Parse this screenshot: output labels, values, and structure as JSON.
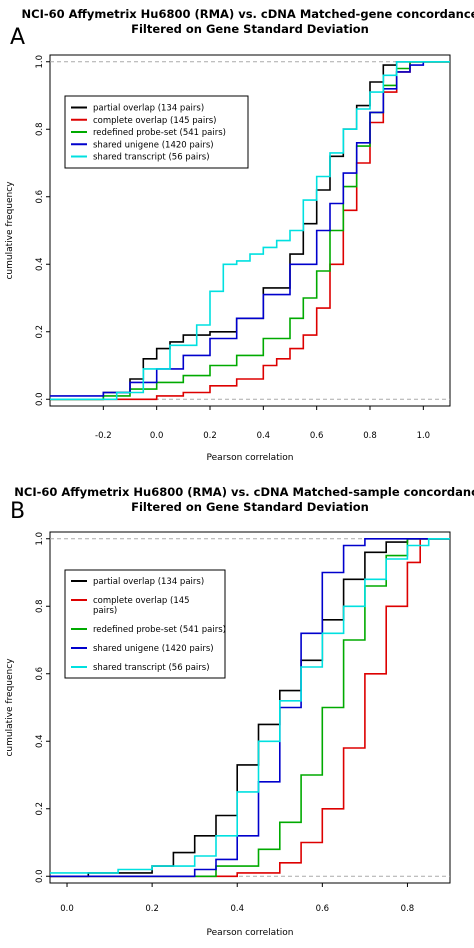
{
  "chart_data": [
    {
      "panel_label": "A",
      "type": "line",
      "title_lines": [
        "NCI-60 Affymetrix Hu6800 (RMA) vs. cDNA Matched-gene concordance",
        "Filtered on Gene Standard Deviation"
      ],
      "xlabel": "Pearson correlation",
      "ylabel": "cumulative frequency",
      "xlim": [
        -0.4,
        1.1
      ],
      "ylim": [
        -0.02,
        1.02
      ],
      "xticks": [
        -0.2,
        0.0,
        0.2,
        0.4,
        0.6,
        0.8,
        1.0
      ],
      "xtick_labels": [
        "-0.2",
        "0.0",
        "0.2",
        "0.4",
        "0.6",
        "0.8",
        "1.0"
      ],
      "yticks": [
        0.0,
        0.2,
        0.4,
        0.6,
        0.8,
        1.0
      ],
      "ytick_labels": [
        "0.0",
        "0.2",
        "0.4",
        "0.6",
        "0.8",
        "1.0"
      ],
      "reference_lines": [
        0,
        1
      ],
      "grid": false,
      "legend_position": "top-left",
      "series": [
        {
          "name": "partial overlap (134 pairs)",
          "color": "#000000",
          "x": [
            -0.4,
            -0.2,
            -0.1,
            -0.05,
            0.0,
            0.05,
            0.1,
            0.2,
            0.3,
            0.4,
            0.5,
            0.55,
            0.6,
            0.65,
            0.7,
            0.75,
            0.8,
            0.85,
            0.9,
            1.1
          ],
          "y": [
            0.0,
            0.02,
            0.06,
            0.12,
            0.15,
            0.17,
            0.19,
            0.2,
            0.24,
            0.33,
            0.43,
            0.52,
            0.62,
            0.72,
            0.8,
            0.87,
            0.94,
            0.99,
            1.0,
            1.0
          ]
        },
        {
          "name": "complete overlap (145 pairs)",
          "color": "#dd0000",
          "x": [
            -0.4,
            -0.1,
            0.0,
            0.1,
            0.2,
            0.3,
            0.4,
            0.45,
            0.5,
            0.55,
            0.6,
            0.65,
            0.7,
            0.75,
            0.8,
            0.85,
            0.9,
            0.95,
            1.1
          ],
          "y": [
            0.0,
            0.0,
            0.01,
            0.02,
            0.04,
            0.06,
            0.1,
            0.12,
            0.15,
            0.19,
            0.27,
            0.4,
            0.56,
            0.7,
            0.82,
            0.91,
            0.97,
            1.0,
            1.0
          ]
        },
        {
          "name": "redefined probe-set (541 pairs)",
          "color": "#00aa00",
          "x": [
            -0.4,
            -0.2,
            -0.1,
            0.0,
            0.1,
            0.2,
            0.3,
            0.4,
            0.5,
            0.55,
            0.6,
            0.65,
            0.7,
            0.75,
            0.8,
            0.85,
            0.9,
            0.95,
            1.1
          ],
          "y": [
            0.0,
            0.01,
            0.03,
            0.05,
            0.07,
            0.1,
            0.13,
            0.18,
            0.24,
            0.3,
            0.38,
            0.5,
            0.63,
            0.75,
            0.85,
            0.93,
            0.98,
            1.0,
            1.0
          ]
        },
        {
          "name": "shared unigene (1420 pairs)",
          "color": "#0000cc",
          "x": [
            -0.4,
            -0.2,
            -0.1,
            0.0,
            0.1,
            0.2,
            0.3,
            0.4,
            0.5,
            0.6,
            0.65,
            0.7,
            0.75,
            0.8,
            0.85,
            0.9,
            0.95,
            1.0
          ],
          "y": [
            0.01,
            0.02,
            0.05,
            0.09,
            0.13,
            0.18,
            0.24,
            0.31,
            0.4,
            0.5,
            0.58,
            0.67,
            0.76,
            0.85,
            0.92,
            0.97,
            0.99,
            1.0
          ]
        },
        {
          "name": "shared transcript (56 pairs)",
          "color": "#00e0e0",
          "x": [
            -0.4,
            -0.15,
            -0.05,
            0.05,
            0.15,
            0.2,
            0.25,
            0.3,
            0.35,
            0.4,
            0.45,
            0.5,
            0.55,
            0.6,
            0.65,
            0.7,
            0.75,
            0.8,
            0.85,
            0.9,
            1.1
          ],
          "y": [
            0.0,
            0.02,
            0.09,
            0.16,
            0.22,
            0.32,
            0.4,
            0.41,
            0.43,
            0.45,
            0.47,
            0.5,
            0.59,
            0.66,
            0.73,
            0.8,
            0.86,
            0.91,
            0.96,
            1.0,
            1.0
          ]
        }
      ]
    },
    {
      "panel_label": "B",
      "type": "line",
      "title_lines": [
        "NCI-60 Affymetrix Hu6800 (RMA) vs. cDNA Matched-sample concordance",
        "Filtered on Gene Standard Deviation"
      ],
      "xlabel": "Pearson correlation",
      "ylabel": "cumulative frequency",
      "xlim": [
        -0.04,
        0.9
      ],
      "ylim": [
        -0.02,
        1.02
      ],
      "xticks": [
        0.0,
        0.2,
        0.4,
        0.6,
        0.8
      ],
      "xtick_labels": [
        "0.0",
        "0.2",
        "0.4",
        "0.6",
        "0.8"
      ],
      "yticks": [
        0.0,
        0.2,
        0.4,
        0.6,
        0.8,
        1.0
      ],
      "ytick_labels": [
        "0.0",
        "0.2",
        "0.4",
        "0.6",
        "0.8",
        "1.0"
      ],
      "reference_lines": [
        0,
        1
      ],
      "grid": false,
      "legend_position": "top-left",
      "series": [
        {
          "name": "partial overlap (134 pairs)",
          "color": "#000000",
          "x": [
            -0.04,
            0.05,
            0.2,
            0.25,
            0.3,
            0.35,
            0.4,
            0.45,
            0.5,
            0.55,
            0.6,
            0.65,
            0.7,
            0.75,
            0.8,
            0.9
          ],
          "y": [
            0.0,
            0.01,
            0.03,
            0.07,
            0.12,
            0.18,
            0.33,
            0.45,
            0.55,
            0.64,
            0.76,
            0.88,
            0.96,
            0.99,
            1.0,
            1.0
          ]
        },
        {
          "name": "complete overlap (145\npairs)",
          "color": "#dd0000",
          "x": [
            -0.04,
            0.3,
            0.4,
            0.5,
            0.55,
            0.6,
            0.65,
            0.7,
            0.75,
            0.8,
            0.83,
            0.9
          ],
          "y": [
            0.0,
            0.0,
            0.01,
            0.04,
            0.1,
            0.2,
            0.38,
            0.6,
            0.8,
            0.93,
            1.0,
            1.0
          ]
        },
        {
          "name": "redefined probe-set (541 pairs)",
          "color": "#00aa00",
          "x": [
            -0.04,
            0.25,
            0.35,
            0.45,
            0.5,
            0.55,
            0.6,
            0.65,
            0.7,
            0.75,
            0.8,
            0.9
          ],
          "y": [
            0.0,
            0.0,
            0.03,
            0.08,
            0.16,
            0.3,
            0.5,
            0.7,
            0.86,
            0.95,
            1.0,
            1.0
          ]
        },
        {
          "name": "shared unigene (1420 pairs)",
          "color": "#0000cc",
          "x": [
            -0.04,
            0.2,
            0.3,
            0.35,
            0.4,
            0.45,
            0.5,
            0.55,
            0.6,
            0.65,
            0.7,
            0.9
          ],
          "y": [
            0.0,
            0.0,
            0.02,
            0.05,
            0.12,
            0.28,
            0.5,
            0.72,
            0.9,
            0.98,
            1.0,
            1.0
          ]
        },
        {
          "name": "shared transcript (56 pairs)",
          "color": "#00e0e0",
          "x": [
            -0.04,
            0.12,
            0.2,
            0.3,
            0.35,
            0.4,
            0.45,
            0.5,
            0.55,
            0.6,
            0.65,
            0.7,
            0.75,
            0.8,
            0.85,
            0.9
          ],
          "y": [
            0.01,
            0.02,
            0.03,
            0.06,
            0.12,
            0.25,
            0.4,
            0.52,
            0.62,
            0.72,
            0.8,
            0.88,
            0.94,
            0.98,
            1.0,
            1.0
          ]
        }
      ]
    }
  ]
}
